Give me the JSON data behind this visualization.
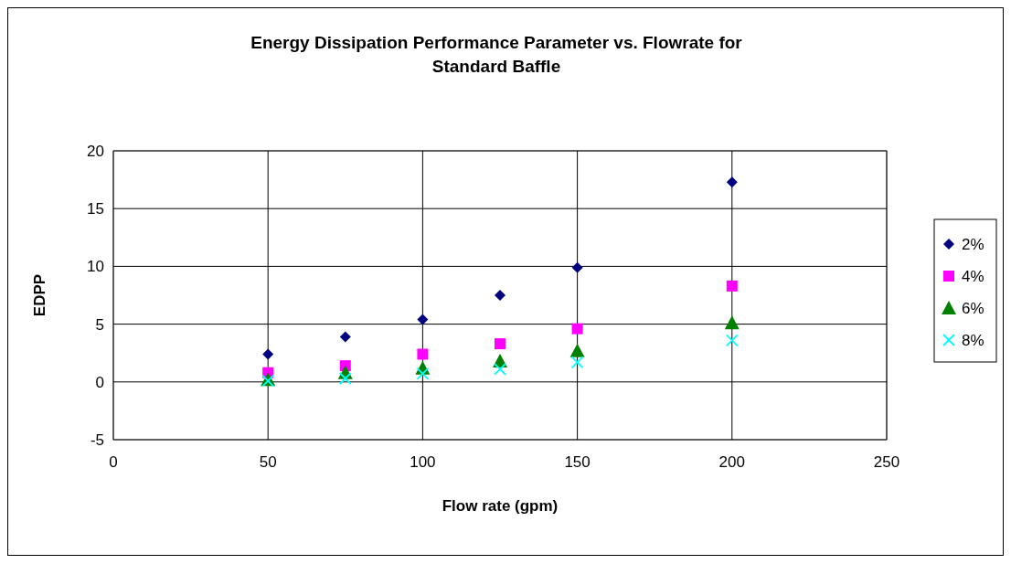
{
  "chart_data": {
    "type": "scatter",
    "title": "Energy Dissipation Performance Parameter vs. Flowrate for Standard Baffle",
    "xlabel": "Flow rate (gpm)",
    "ylabel": "EDPP",
    "x": [
      50,
      75,
      100,
      125,
      150,
      200
    ],
    "series": [
      {
        "name": "2%",
        "color": "#000080",
        "marker": "diamond",
        "values": [
          2.4,
          3.9,
          5.4,
          7.5,
          9.9,
          17.3
        ]
      },
      {
        "name": "4%",
        "color": "#ff00ff",
        "marker": "square",
        "values": [
          0.8,
          1.4,
          2.4,
          3.3,
          4.6,
          8.3
        ]
      },
      {
        "name": "6%",
        "color": "#008000",
        "marker": "triangle",
        "values": [
          0.2,
          0.8,
          1.2,
          1.8,
          2.7,
          5.1
        ]
      },
      {
        "name": "8%",
        "color": "#00ffff",
        "marker": "cross",
        "values": [
          0.1,
          0.3,
          0.7,
          1.1,
          1.7,
          3.6
        ]
      }
    ],
    "xlim": [
      0,
      250
    ],
    "xticks": [
      0,
      50,
      100,
      150,
      200,
      250
    ],
    "ylim": [
      -5,
      20
    ],
    "yticks": [
      -5,
      0,
      5,
      10,
      15,
      20
    ],
    "grid": true,
    "legend": "right"
  }
}
